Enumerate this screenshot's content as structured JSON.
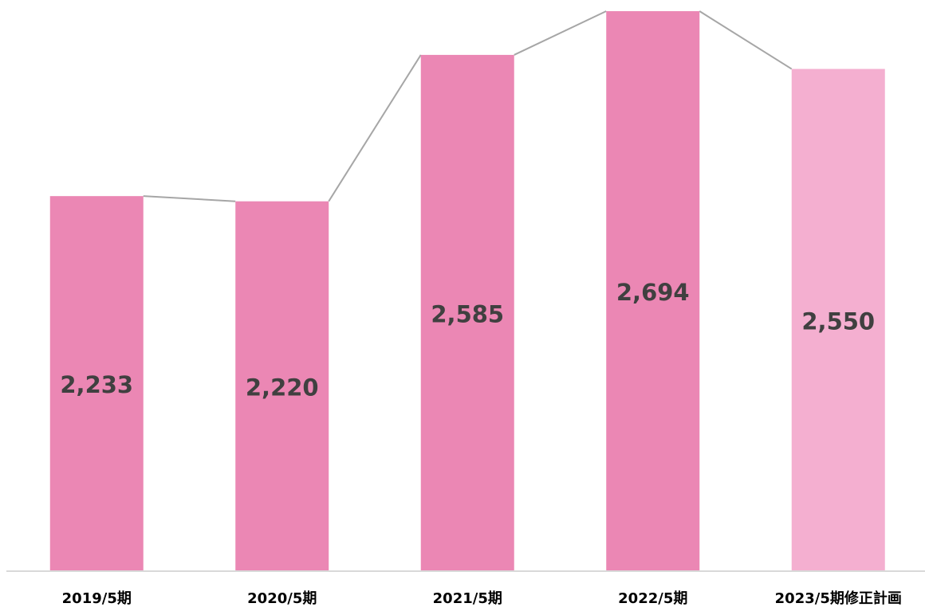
{
  "chart_data": {
    "type": "bar",
    "categories": [
      "2019/5期",
      "2020/5期",
      "2021/5期",
      "2022/5期",
      "2023/5期修正計画"
    ],
    "values": [
      2233,
      2220,
      2585,
      2694,
      2550
    ],
    "value_labels": [
      "2,233",
      "2,220",
      "2,585",
      "2,694",
      "2,550"
    ],
    "colors": [
      "#eb87b4",
      "#eb87b4",
      "#eb87b4",
      "#eb87b4",
      "#f4afd0"
    ],
    "line_color": "#a6a6a6",
    "ylim": [
      1300,
      2700
    ]
  }
}
